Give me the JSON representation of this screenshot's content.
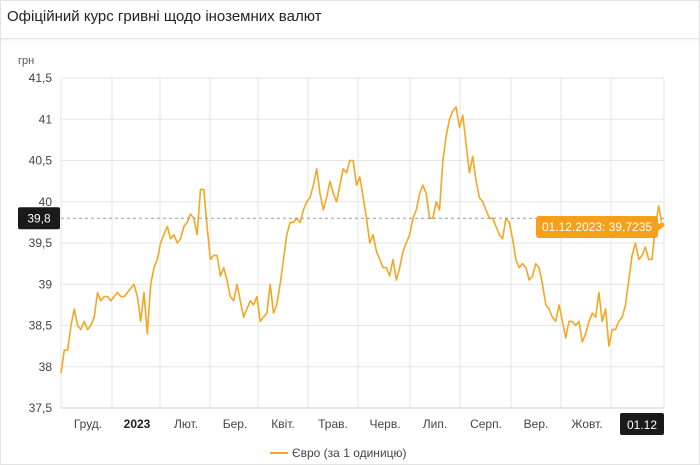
{
  "header": {
    "title": "Офіційний курс гривні щодо іноземних валют"
  },
  "colors": {
    "line": "#f5a623",
    "tooltip_bg": "#f5a01a",
    "crosshair_badge": "#1a1a1a",
    "grid": "#e6e6e6"
  },
  "chart_data": {
    "type": "line",
    "title": "",
    "ylabel": "грн",
    "ylim": [
      37.5,
      41.5
    ],
    "yticks": [
      "37,5",
      "38",
      "38,5",
      "39",
      "39,5",
      "40",
      "40,5",
      "41",
      "41,5"
    ],
    "yticks_values": [
      37.5,
      38,
      38.5,
      39,
      39.5,
      40,
      40.5,
      41,
      41.5
    ],
    "xticks": [
      {
        "label": "Груд.",
        "bold": false
      },
      {
        "label": "2023",
        "bold": true
      },
      {
        "label": "Лют.",
        "bold": false
      },
      {
        "label": "Бер.",
        "bold": false
      },
      {
        "label": "Квіт.",
        "bold": false
      },
      {
        "label": "Трав.",
        "bold": false
      },
      {
        "label": "Черв.",
        "bold": false
      },
      {
        "label": "Лип.",
        "bold": false
      },
      {
        "label": "Серп.",
        "bold": false
      },
      {
        "label": "Вер.",
        "bold": false
      },
      {
        "label": "Жовт.",
        "bold": false
      }
    ],
    "x_end_label": "01.12",
    "crosshair_value_label": "39,8",
    "crosshair_value": 39.8,
    "tooltip": "01.12.2023: 39,7235",
    "legend": [
      {
        "name": "Євро (за 1 одиницю)",
        "color": "#f5a623",
        "position": "bottom"
      }
    ],
    "grid": true,
    "series": [
      {
        "name": "Євро (за 1 одиницю)",
        "values": [
          37.92,
          38.2,
          38.2,
          38.5,
          38.7,
          38.5,
          38.45,
          38.55,
          38.45,
          38.5,
          38.6,
          38.9,
          38.8,
          38.85,
          38.85,
          38.8,
          38.85,
          38.9,
          38.85,
          38.85,
          38.9,
          38.95,
          39.0,
          38.85,
          38.55,
          38.9,
          38.4,
          39.0,
          39.2,
          39.3,
          39.5,
          39.6,
          39.7,
          39.55,
          39.6,
          39.5,
          39.55,
          39.7,
          39.75,
          39.85,
          39.8,
          39.6,
          40.15,
          40.15,
          39.7,
          39.3,
          39.35,
          39.35,
          39.1,
          39.2,
          39.05,
          38.85,
          38.8,
          39.0,
          38.8,
          38.6,
          38.7,
          38.8,
          38.75,
          38.85,
          38.55,
          38.6,
          38.65,
          39.0,
          38.65,
          38.75,
          39.0,
          39.3,
          39.6,
          39.75,
          39.75,
          39.8,
          39.75,
          39.9,
          40.0,
          40.05,
          40.2,
          40.4,
          40.1,
          39.9,
          40.05,
          40.25,
          40.1,
          40.0,
          40.2,
          40.4,
          40.35,
          40.5,
          40.5,
          40.2,
          40.3,
          40.05,
          39.8,
          39.5,
          39.6,
          39.4,
          39.3,
          39.2,
          39.2,
          39.1,
          39.3,
          39.05,
          39.2,
          39.4,
          39.5,
          39.6,
          39.8,
          39.9,
          40.1,
          40.2,
          40.1,
          39.8,
          39.8,
          40.0,
          39.9,
          40.5,
          40.8,
          41.0,
          41.1,
          41.15,
          40.9,
          41.05,
          40.7,
          40.35,
          40.55,
          40.25,
          40.05,
          40.0,
          39.9,
          39.8,
          39.8,
          39.7,
          39.6,
          39.55,
          39.8,
          39.75,
          39.55,
          39.3,
          39.2,
          39.25,
          39.2,
          39.05,
          39.1,
          39.25,
          39.2,
          39.0,
          38.75,
          38.7,
          38.6,
          38.55,
          38.75,
          38.55,
          38.35,
          38.55,
          38.55,
          38.5,
          38.55,
          38.3,
          38.4,
          38.55,
          38.65,
          38.6,
          38.9,
          38.55,
          38.7,
          38.25,
          38.45,
          38.45,
          38.55,
          38.6,
          38.75,
          39.05,
          39.35,
          39.5,
          39.3,
          39.35,
          39.45,
          39.3,
          39.3,
          39.7,
          39.95,
          39.72
        ]
      }
    ]
  }
}
